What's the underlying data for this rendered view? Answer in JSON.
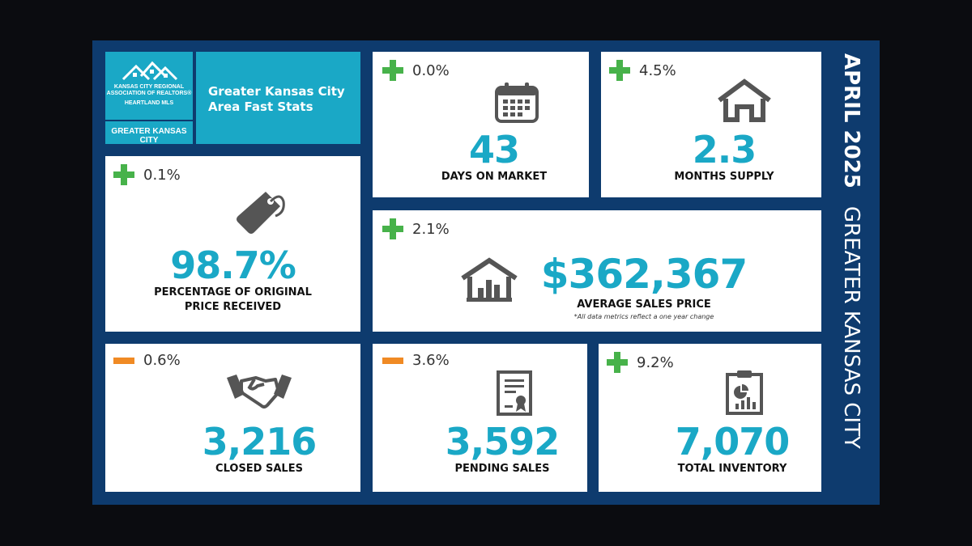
{
  "logo": {
    "line1": "KANSAS CITY REGIONAL",
    "line2": "ASSOCIATION OF REALTORS®",
    "line3": "HEARTLAND MLS"
  },
  "region_tag": "GREATER KANSAS CITY",
  "title": {
    "line1": "Greater Kansas City",
    "line2": "Area Fast Stats"
  },
  "side": {
    "month": "APRIL 2025",
    "area": "GREATER KANSAS CITY"
  },
  "stats": {
    "days_on_market": {
      "change": "0.0%",
      "direction": "up",
      "value": "43",
      "label": "DAYS ON MARKET",
      "icon": "calendar-icon"
    },
    "months_supply": {
      "change": "4.5%",
      "direction": "up",
      "value": "2.3",
      "label": "MONTHS SUPPLY",
      "icon": "house-icon"
    },
    "pct_original": {
      "change": "0.1%",
      "direction": "up",
      "value": "98.7%",
      "label_line1": "PERCENTAGE OF ORIGINAL",
      "label_line2": "PRICE RECEIVED",
      "icon": "price-tag-icon"
    },
    "avg_price": {
      "change": "2.1%",
      "direction": "up",
      "value": "$362,367",
      "label": "AVERAGE SALES PRICE",
      "note": "*All data metrics reflect a one year change",
      "icon": "house-chart-icon"
    },
    "closed_sales": {
      "change": "0.6%",
      "direction": "down",
      "value": "3,216",
      "label": "CLOSED SALES",
      "icon": "handshake-icon"
    },
    "pending_sales": {
      "change": "3.6%",
      "direction": "down",
      "value": "3,592",
      "label": "PENDING SALES",
      "icon": "certificate-icon"
    },
    "total_inventory": {
      "change": "9.2%",
      "direction": "up",
      "value": "7,070",
      "label": "TOTAL INVENTORY",
      "icon": "clipboard-chart-icon"
    }
  },
  "colors": {
    "teal": "#1aa8c6",
    "navy": "#0e3b6e",
    "plus": "#47b24a",
    "minus": "#f08a24"
  }
}
